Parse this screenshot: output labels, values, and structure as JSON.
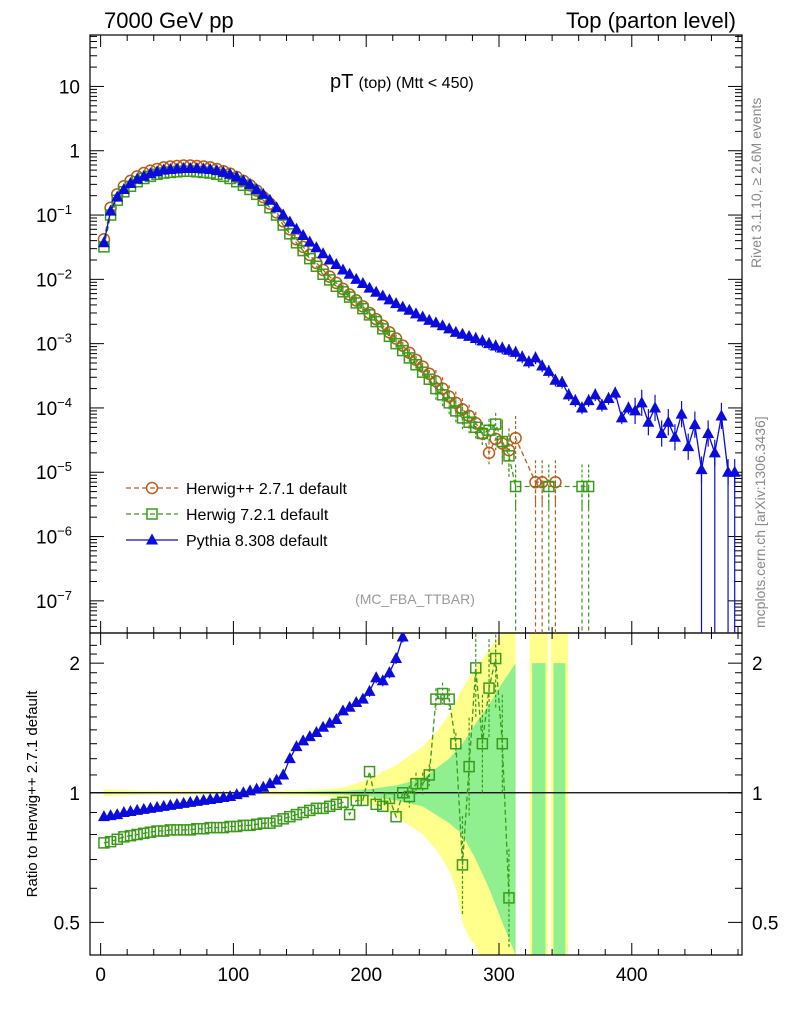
{
  "header": {
    "left": "7000 GeV pp",
    "right": "Top (parton level)"
  },
  "side_labels": {
    "rivet": "Rivet 3.1.10, ≥ 2.6M events",
    "mcplots": "mcplots.cern.ch [arXiv:1306.3436]"
  },
  "chart_data": {
    "type": "scatter",
    "title_main": "pT",
    "title_sub": "(top) (Mtt < 450)",
    "analysis_label": "(MC_FBA_TTBAR)",
    "xlim": [
      -8,
      483
    ],
    "upper_ylim_log10": [
      -7.5,
      1.8
    ],
    "ratio_ylim": [
      0.42,
      2.35
    ],
    "x_ticks": [
      "0",
      "100",
      "200",
      "300",
      "400"
    ],
    "y_ticks_upper": [
      {
        "e": 1,
        "label": "10"
      },
      {
        "e": 0,
        "label": "1"
      },
      {
        "e": -1,
        "label": "10",
        "sup": "−1"
      },
      {
        "e": -2,
        "label": "10",
        "sup": "−2"
      },
      {
        "e": -3,
        "label": "10",
        "sup": "−3"
      },
      {
        "e": -4,
        "label": "10",
        "sup": "−4"
      },
      {
        "e": -5,
        "label": "10",
        "sup": "−5"
      },
      {
        "e": -6,
        "label": "10",
        "sup": "−6"
      },
      {
        "e": -7,
        "label": "10",
        "sup": "−7"
      }
    ],
    "ratio_ticks": [
      "0.5",
      "1",
      "2"
    ],
    "ratio_ylabel": "Ratio to Herwig++ 2.7.1 default",
    "legend": [
      {
        "name": "Herwig++ 2.7.1 default",
        "color": "#b85c1a",
        "marker": "circle"
      },
      {
        "name": "Herwig 7.2.1 default",
        "color": "#3a9a1a",
        "marker": "square"
      },
      {
        "name": "Pythia 8.308 default",
        "color": "#0b0bdc",
        "marker": "triangle"
      }
    ],
    "series": {
      "herwigpp": {
        "x": [
          2.5,
          7.5,
          12.5,
          17.5,
          22.5,
          27.5,
          32.5,
          37.5,
          42.5,
          47.5,
          52.5,
          57.5,
          62.5,
          67.5,
          72.5,
          77.5,
          82.5,
          87.5,
          92.5,
          97.5,
          102.5,
          107.5,
          112.5,
          117.5,
          122.5,
          127.5,
          132.5,
          137.5,
          142.5,
          147.5,
          152.5,
          157.5,
          162.5,
          167.5,
          172.5,
          177.5,
          182.5,
          187.5,
          192.5,
          197.5,
          202.5,
          207.5,
          212.5,
          217.5,
          222.5,
          227.5,
          232.5,
          237.5,
          242.5,
          247.5,
          252.5,
          257.5,
          262.5,
          267.5,
          272.5,
          277.5,
          282.5,
          287.5,
          292.5,
          297.5,
          302.5,
          307.5,
          312.5,
          327.5,
          332.5,
          342.5
        ],
        "y": [
          0.042,
          0.13,
          0.21,
          0.28,
          0.34,
          0.4,
          0.45,
          0.49,
          0.52,
          0.55,
          0.57,
          0.58,
          0.59,
          0.59,
          0.58,
          0.57,
          0.55,
          0.52,
          0.48,
          0.44,
          0.39,
          0.34,
          0.29,
          0.24,
          0.19,
          0.15,
          0.11,
          0.08,
          0.06,
          0.042,
          0.032,
          0.024,
          0.018,
          0.014,
          0.011,
          0.0088,
          0.0071,
          0.0058,
          0.0047,
          0.0038,
          0.003,
          0.0024,
          0.0019,
          0.0015,
          0.0012,
          0.00093,
          0.00072,
          0.00056,
          0.00044,
          0.00034,
          0.00026,
          0.0002,
          0.00015,
          0.00012,
          9.5e-05,
          7.5e-05,
          5.8e-05,
          4e-05,
          2e-05,
          3.3e-05,
          2.8e-05,
          2.2e-05,
          3.4e-05,
          7e-06,
          7e-06,
          7e-06
        ]
      },
      "herwig7": {
        "x": [
          2.5,
          7.5,
          12.5,
          17.5,
          22.5,
          27.5,
          32.5,
          37.5,
          42.5,
          47.5,
          52.5,
          57.5,
          62.5,
          67.5,
          72.5,
          77.5,
          82.5,
          87.5,
          92.5,
          97.5,
          102.5,
          107.5,
          112.5,
          117.5,
          122.5,
          127.5,
          132.5,
          137.5,
          142.5,
          147.5,
          152.5,
          157.5,
          162.5,
          167.5,
          172.5,
          177.5,
          182.5,
          187.5,
          192.5,
          197.5,
          202.5,
          207.5,
          212.5,
          217.5,
          222.5,
          227.5,
          232.5,
          237.5,
          242.5,
          247.5,
          252.5,
          257.5,
          262.5,
          267.5,
          272.5,
          277.5,
          282.5,
          287.5,
          292.5,
          297.5,
          302.5,
          307.5,
          312.5,
          337.5,
          362.5,
          367.5
        ],
        "y": [
          0.032,
          0.1,
          0.17,
          0.23,
          0.28,
          0.33,
          0.37,
          0.4,
          0.43,
          0.45,
          0.46,
          0.47,
          0.48,
          0.48,
          0.47,
          0.46,
          0.45,
          0.43,
          0.4,
          0.37,
          0.33,
          0.29,
          0.25,
          0.21,
          0.17,
          0.13,
          0.1,
          0.07,
          0.051,
          0.037,
          0.028,
          0.021,
          0.016,
          0.012,
          0.0098,
          0.0078,
          0.0064,
          0.0053,
          0.0043,
          0.0035,
          0.0028,
          0.0022,
          0.0017,
          0.0013,
          0.001,
          0.00078,
          0.0006,
          0.00047,
          0.00036,
          0.00028,
          0.0002,
          0.00016,
          0.00012,
          9e-05,
          7e-05,
          6e-05,
          5e-05,
          4e-05,
          4.5e-05,
          5.6e-05,
          3e-05,
          1.8e-05,
          6e-06,
          6e-06,
          6e-06,
          6e-06
        ]
      },
      "pythia": {
        "x": [
          2.5,
          7.5,
          12.5,
          17.5,
          22.5,
          27.5,
          32.5,
          37.5,
          42.5,
          47.5,
          52.5,
          57.5,
          62.5,
          67.5,
          72.5,
          77.5,
          82.5,
          87.5,
          92.5,
          97.5,
          102.5,
          107.5,
          112.5,
          117.5,
          122.5,
          127.5,
          132.5,
          137.5,
          142.5,
          147.5,
          152.5,
          157.5,
          162.5,
          167.5,
          172.5,
          177.5,
          182.5,
          187.5,
          192.5,
          197.5,
          202.5,
          207.5,
          212.5,
          217.5,
          222.5,
          227.5,
          232.5,
          237.5,
          242.5,
          247.5,
          252.5,
          257.5,
          262.5,
          267.5,
          272.5,
          277.5,
          282.5,
          287.5,
          292.5,
          297.5,
          302.5,
          307.5,
          312.5,
          317.5,
          322.5,
          327.5,
          332.5,
          337.5,
          342.5,
          347.5,
          352.5,
          357.5,
          362.5,
          367.5,
          372.5,
          377.5,
          382.5,
          387.5,
          392.5,
          397.5,
          402.5,
          407.5,
          412.5,
          417.5,
          422.5,
          427.5,
          432.5,
          437.5,
          442.5,
          447.5,
          452.5,
          457.5,
          462.5,
          467.5,
          472.5,
          477.5
        ],
        "y": [
          0.037,
          0.115,
          0.19,
          0.25,
          0.31,
          0.36,
          0.4,
          0.44,
          0.47,
          0.5,
          0.51,
          0.52,
          0.53,
          0.53,
          0.53,
          0.52,
          0.51,
          0.49,
          0.46,
          0.43,
          0.39,
          0.34,
          0.3,
          0.25,
          0.21,
          0.17,
          0.13,
          0.1,
          0.078,
          0.06,
          0.048,
          0.038,
          0.031,
          0.025,
          0.02,
          0.017,
          0.014,
          0.012,
          0.01,
          0.0086,
          0.0073,
          0.0063,
          0.0055,
          0.0048,
          0.0042,
          0.0037,
          0.0033,
          0.0029,
          0.0026,
          0.0023,
          0.0021,
          0.0019,
          0.0017,
          0.0015,
          0.0014,
          0.0013,
          0.0012,
          0.0011,
          0.001,
          0.00092,
          0.00085,
          0.00079,
          0.00073,
          0.00062,
          0.00052,
          0.0006,
          0.00045,
          0.00037,
          0.00027,
          0.00025,
          0.00016,
          0.00013,
          0.0001,
          0.00013,
          0.00016,
          0.00011,
          0.00014,
          0.00017,
          7e-05,
          0.0001,
          9e-05,
          0.00012,
          6e-05,
          0.0001,
          4e-05,
          6e-05,
          3.5e-05,
          8e-05,
          2.5e-05,
          5.5e-05,
          1.1e-05,
          4e-05,
          2e-05,
          7.5e-05,
          1e-05,
          1e-05
        ]
      }
    },
    "ratio": {
      "pythia": {
        "x": [
          2.5,
          7.5,
          12.5,
          17.5,
          22.5,
          27.5,
          32.5,
          37.5,
          42.5,
          47.5,
          52.5,
          57.5,
          62.5,
          67.5,
          72.5,
          77.5,
          82.5,
          87.5,
          92.5,
          97.5,
          102.5,
          107.5,
          112.5,
          117.5,
          122.5,
          127.5,
          132.5,
          137.5,
          142.5,
          147.5,
          152.5,
          157.5,
          162.5,
          167.5,
          172.5,
          177.5,
          182.5,
          187.5,
          192.5,
          197.5,
          202.5,
          207.5,
          212.5,
          217.5,
          222.5,
          227.5
        ],
        "y": [
          0.88,
          0.885,
          0.89,
          0.9,
          0.905,
          0.91,
          0.915,
          0.92,
          0.925,
          0.93,
          0.935,
          0.94,
          0.945,
          0.95,
          0.955,
          0.96,
          0.965,
          0.97,
          0.975,
          0.98,
          0.99,
          1.0,
          1.01,
          1.02,
          1.03,
          1.05,
          1.07,
          1.1,
          1.2,
          1.28,
          1.32,
          1.35,
          1.38,
          1.42,
          1.45,
          1.48,
          1.55,
          1.58,
          1.62,
          1.65,
          1.72,
          1.85,
          1.82,
          1.9,
          2.05,
          2.3
        ]
      },
      "herwig7": {
        "x": [
          2.5,
          7.5,
          12.5,
          17.5,
          22.5,
          27.5,
          32.5,
          37.5,
          42.5,
          47.5,
          52.5,
          57.5,
          62.5,
          67.5,
          72.5,
          77.5,
          82.5,
          87.5,
          92.5,
          97.5,
          102.5,
          107.5,
          112.5,
          117.5,
          122.5,
          127.5,
          132.5,
          137.5,
          142.5,
          147.5,
          152.5,
          157.5,
          162.5,
          167.5,
          172.5,
          177.5,
          182.5,
          187.5,
          192.5,
          197.5,
          202.5,
          207.5,
          212.5,
          217.5,
          222.5,
          227.5,
          232.5,
          237.5,
          242.5,
          247.5,
          252.5,
          257.5,
          262.5,
          267.5,
          272.5,
          277.5,
          282.5,
          287.5,
          292.5,
          297.5,
          302.5,
          307.5
        ],
        "y": [
          0.765,
          0.77,
          0.78,
          0.79,
          0.795,
          0.8,
          0.805,
          0.81,
          0.815,
          0.815,
          0.82,
          0.82,
          0.82,
          0.82,
          0.825,
          0.825,
          0.83,
          0.83,
          0.83,
          0.835,
          0.835,
          0.84,
          0.84,
          0.845,
          0.85,
          0.85,
          0.86,
          0.87,
          0.88,
          0.89,
          0.9,
          0.91,
          0.92,
          0.92,
          0.93,
          0.94,
          0.95,
          0.89,
          0.96,
          0.96,
          1.12,
          0.94,
          0.93,
          0.97,
          0.88,
          1.0,
          0.98,
          1.05,
          1.05,
          1.1,
          1.65,
          1.7,
          1.65,
          1.3,
          0.68,
          1.15,
          1.95,
          1.3,
          1.75,
          2.05,
          1.3,
          0.57
        ]
      },
      "band_herwigpp": {
        "x": [
          2.5,
          32.5,
          62.5,
          92.5,
          122.5,
          152.5,
          172.5,
          182.5,
          192.5,
          202.5,
          212.5,
          222.5,
          232.5,
          242.5,
          252.5,
          262.5,
          267.5,
          272.5,
          277.5,
          282.5,
          287.5,
          292.5,
          297.5,
          302.5,
          307.5,
          312.5
        ],
        "lo": [
          0.98,
          0.99,
          0.99,
          0.99,
          0.99,
          0.985,
          0.98,
          0.97,
          0.96,
          0.94,
          0.92,
          0.88,
          0.84,
          0.8,
          0.74,
          0.66,
          0.6,
          0.5,
          0.46,
          0.44,
          0.4,
          0.38,
          0.36,
          0.33,
          0.3,
          0.28
        ],
        "hi": [
          1.02,
          1.01,
          1.01,
          1.01,
          1.01,
          1.015,
          1.02,
          1.03,
          1.05,
          1.08,
          1.12,
          1.16,
          1.22,
          1.28,
          1.38,
          1.52,
          1.62,
          1.75,
          1.85,
          1.95,
          2.05,
          2.15,
          2.25,
          2.35,
          2.35,
          2.35
        ]
      },
      "band_pythia_stat": {
        "x": [
          2.5,
          62.5,
          122.5,
          152.5,
          182.5,
          202.5,
          222.5,
          242.5,
          262.5,
          272.5,
          282.5,
          292.5,
          302.5,
          312.5
        ],
        "lo": [
          0.995,
          0.997,
          0.997,
          0.995,
          0.99,
          0.98,
          0.96,
          0.93,
          0.85,
          0.8,
          0.7,
          0.6,
          0.5,
          0.42
        ],
        "hi": [
          1.005,
          1.003,
          1.003,
          1.005,
          1.01,
          1.02,
          1.04,
          1.08,
          1.2,
          1.3,
          1.45,
          1.6,
          1.8,
          2.0
        ]
      },
      "green_bins": [
        {
          "x0": 325,
          "x1": 335,
          "lo": 0.42,
          "hi": 2.0
        },
        {
          "x0": 341,
          "x1": 350,
          "lo": 0.42,
          "hi": 2.0
        }
      ],
      "yellow_bins": [
        {
          "x0": 323,
          "x1": 337,
          "lo": 0.42,
          "hi": 2.35
        },
        {
          "x0": 339,
          "x1": 352,
          "lo": 0.42,
          "hi": 2.35
        }
      ]
    }
  }
}
